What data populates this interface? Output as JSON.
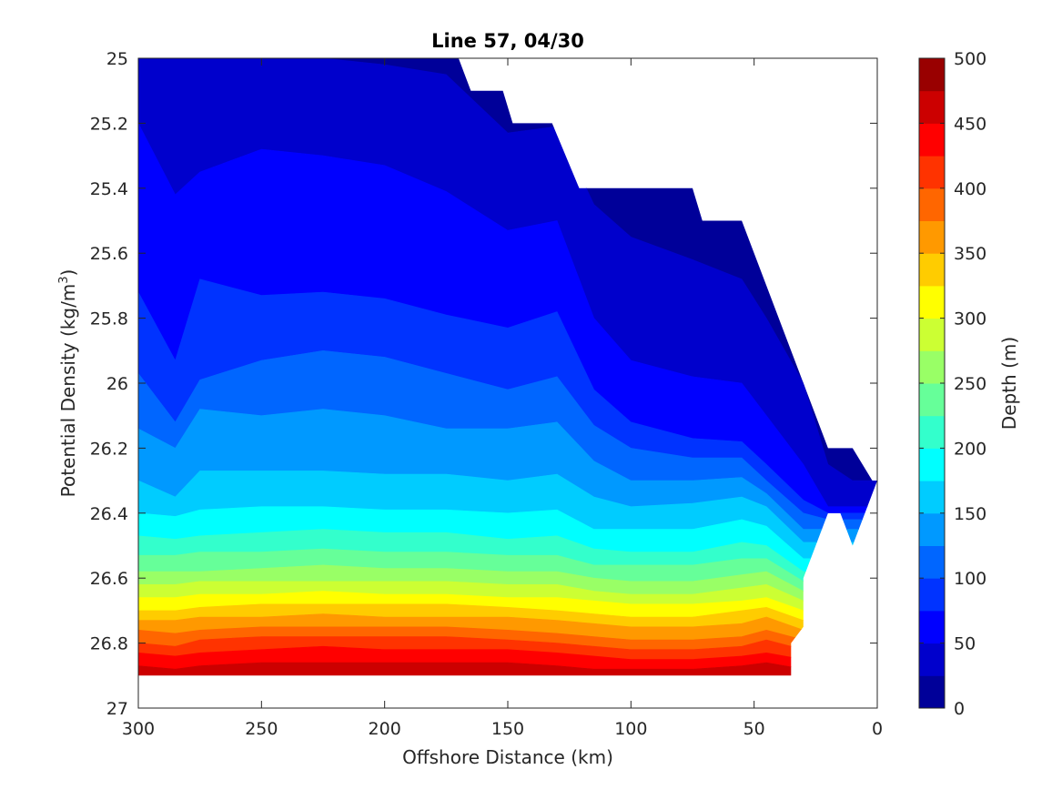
{
  "chart_data": {
    "type": "filled-contour",
    "title": "Line 57, 04/30",
    "xlabel": "Offshore Distance (km)",
    "ylabel": "Potential Density (kg/m",
    "ylabel_sup": "3",
    "ylabel_close": ")",
    "colorbar_label": "Depth (m)",
    "xlim": [
      300,
      0
    ],
    "ylim": [
      25,
      27
    ],
    "x_reversed": true,
    "y_reversed": true,
    "xticks": [
      300,
      250,
      200,
      150,
      100,
      50,
      0
    ],
    "yticks": [
      25,
      25.2,
      25.4,
      25.6,
      25.8,
      26,
      26.2,
      26.4,
      26.6,
      26.8,
      27
    ],
    "ytick_labels": [
      "25",
      "25.2",
      "25.4",
      "25.6",
      "25.8",
      "26",
      "26.2",
      "26.4",
      "26.6",
      "26.8",
      "27"
    ],
    "colorbar_ticks": [
      0,
      50,
      100,
      150,
      200,
      250,
      300,
      350,
      400,
      450,
      500
    ],
    "colorbar_lim": [
      0,
      500
    ],
    "level_step": 25,
    "colormap": "jet",
    "grid": false,
    "data_boundary": [
      [
        300,
        25.0
      ],
      [
        170,
        25.0
      ],
      [
        165,
        25.1
      ],
      [
        152,
        25.1
      ],
      [
        148,
        25.2
      ],
      [
        132,
        25.2
      ],
      [
        121,
        25.4
      ],
      [
        75,
        25.4
      ],
      [
        71,
        25.5
      ],
      [
        55,
        25.5
      ],
      [
        45,
        25.7
      ],
      [
        20,
        26.2
      ],
      [
        10,
        26.2
      ],
      [
        2,
        26.3
      ],
      [
        0,
        26.3
      ],
      [
        10,
        26.5
      ],
      [
        15,
        26.4
      ],
      [
        20,
        26.4
      ],
      [
        30,
        26.6
      ],
      [
        30,
        26.75
      ],
      [
        35,
        26.8
      ],
      [
        35,
        26.9
      ],
      [
        300,
        26.9
      ]
    ],
    "contour_x": [
      300,
      285,
      275,
      250,
      225,
      200,
      175,
      150,
      130,
      115,
      100,
      75,
      55,
      45,
      30,
      20,
      10
    ],
    "contour_boundaries": [
      {
        "depth": 25,
        "sigma": [
          25.0,
          25.0,
          25.0,
          25.0,
          25.0,
          25.02,
          25.05,
          25.23,
          25.21,
          25.45,
          25.55,
          25.62,
          25.68,
          25.8,
          26.0,
          26.25,
          26.3
        ]
      },
      {
        "depth": 50,
        "sigma": [
          25.2,
          25.42,
          25.35,
          25.28,
          25.3,
          25.33,
          25.41,
          25.53,
          25.5,
          25.8,
          25.93,
          25.98,
          26.0,
          26.1,
          26.25,
          26.38,
          26.38
        ]
      },
      {
        "depth": 75,
        "sigma": [
          25.72,
          25.93,
          25.68,
          25.73,
          25.72,
          25.74,
          25.79,
          25.83,
          25.78,
          26.02,
          26.12,
          26.17,
          26.18,
          26.25,
          26.36,
          26.4,
          26.4
        ]
      },
      {
        "depth": 100,
        "sigma": [
          25.97,
          26.12,
          25.99,
          25.93,
          25.9,
          25.92,
          25.97,
          26.02,
          25.98,
          26.13,
          26.2,
          26.23,
          26.23,
          26.3,
          26.4,
          26.42,
          26.42
        ]
      },
      {
        "depth": 125,
        "sigma": [
          26.14,
          26.2,
          26.08,
          26.1,
          26.08,
          26.1,
          26.14,
          26.14,
          26.12,
          26.24,
          26.3,
          26.3,
          26.29,
          26.34,
          26.45,
          26.45,
          26.45
        ]
      },
      {
        "depth": 150,
        "sigma": [
          26.3,
          26.35,
          26.27,
          26.27,
          26.27,
          26.28,
          26.28,
          26.3,
          26.28,
          26.35,
          26.38,
          26.37,
          26.35,
          26.38,
          26.49,
          26.49,
          26.49
        ]
      },
      {
        "depth": 175,
        "sigma": [
          26.4,
          26.41,
          26.39,
          26.38,
          26.38,
          26.39,
          26.39,
          26.4,
          26.39,
          26.45,
          26.45,
          26.45,
          26.42,
          26.44,
          26.54,
          26.54,
          26.54
        ]
      },
      {
        "depth": 200,
        "sigma": [
          26.47,
          26.48,
          26.47,
          26.46,
          26.45,
          26.46,
          26.46,
          26.48,
          26.47,
          26.51,
          26.52,
          26.52,
          26.49,
          26.5,
          26.58,
          26.58,
          26.58
        ]
      },
      {
        "depth": 225,
        "sigma": [
          26.53,
          26.53,
          26.52,
          26.52,
          26.51,
          26.52,
          26.52,
          26.53,
          26.53,
          26.56,
          26.56,
          26.56,
          26.54,
          26.54,
          26.61,
          26.61,
          26.61
        ]
      },
      {
        "depth": 250,
        "sigma": [
          26.58,
          26.58,
          26.58,
          26.57,
          26.56,
          26.57,
          26.57,
          26.58,
          26.58,
          26.6,
          26.61,
          26.61,
          26.59,
          26.58,
          26.64,
          26.64,
          26.64
        ]
      },
      {
        "depth": 275,
        "sigma": [
          26.62,
          26.62,
          26.61,
          26.61,
          26.61,
          26.61,
          26.61,
          26.62,
          26.62,
          26.64,
          26.65,
          26.65,
          26.63,
          26.62,
          26.67,
          26.67,
          26.67
        ]
      },
      {
        "depth": 300,
        "sigma": [
          26.66,
          26.66,
          26.65,
          26.65,
          26.64,
          26.65,
          26.65,
          26.66,
          26.66,
          26.67,
          26.68,
          26.68,
          26.67,
          26.66,
          26.7,
          26.7,
          26.7
        ]
      },
      {
        "depth": 325,
        "sigma": [
          26.7,
          26.7,
          26.69,
          26.68,
          26.68,
          26.68,
          26.68,
          26.69,
          26.7,
          26.71,
          26.72,
          26.72,
          26.7,
          26.69,
          26.73,
          26.73,
          26.73
        ]
      },
      {
        "depth": 350,
        "sigma": [
          26.73,
          26.73,
          26.72,
          26.72,
          26.71,
          26.72,
          26.72,
          26.72,
          26.73,
          26.74,
          26.75,
          26.75,
          26.74,
          26.72,
          26.76,
          26.76,
          26.76
        ]
      },
      {
        "depth": 375,
        "sigma": [
          26.76,
          26.77,
          26.76,
          26.75,
          26.75,
          26.75,
          26.75,
          26.76,
          26.77,
          26.78,
          26.79,
          26.79,
          26.78,
          26.76,
          26.79,
          26.79,
          26.79
        ]
      },
      {
        "depth": 400,
        "sigma": [
          26.8,
          26.81,
          26.79,
          26.78,
          26.78,
          26.78,
          26.78,
          26.79,
          26.8,
          26.81,
          26.82,
          26.82,
          26.81,
          26.79,
          26.82,
          26.82,
          26.82
        ]
      },
      {
        "depth": 425,
        "sigma": [
          26.83,
          26.84,
          26.83,
          26.82,
          26.81,
          26.82,
          26.82,
          26.82,
          26.83,
          26.84,
          26.85,
          26.85,
          26.84,
          26.83,
          26.85,
          26.85,
          26.85
        ]
      },
      {
        "depth": 450,
        "sigma": [
          26.87,
          26.88,
          26.87,
          26.86,
          26.86,
          26.86,
          26.86,
          26.86,
          26.87,
          26.88,
          26.88,
          26.88,
          26.87,
          26.86,
          26.88,
          26.88,
          26.88
        ]
      }
    ]
  }
}
